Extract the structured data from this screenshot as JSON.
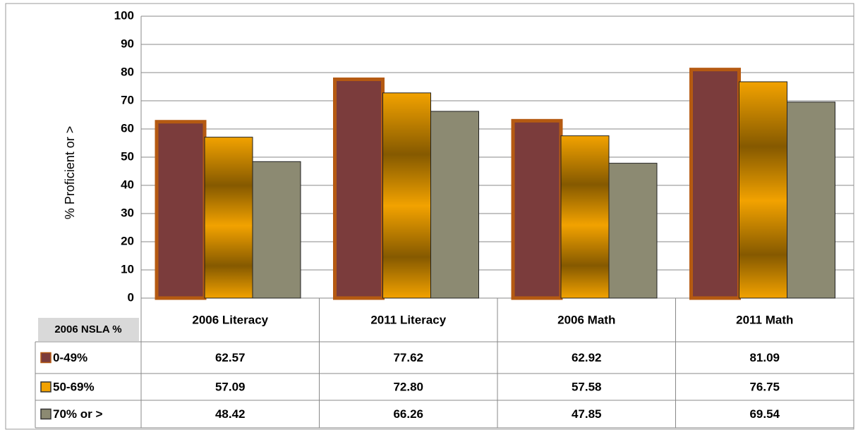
{
  "chart_data": {
    "type": "bar",
    "y_label": "% Proficient or >",
    "table_header": "2006 NSLA %",
    "categories": [
      "2006 Literacy",
      "2011 Literacy",
      "2006 Math",
      "2011 Math"
    ],
    "series": [
      {
        "name": "0-49%",
        "color": "#7b3c3c",
        "border": "#b55a12",
        "values": [
          62.57,
          77.62,
          62.92,
          81.09
        ],
        "value_labels": [
          "62.57",
          "77.62",
          "62.92",
          "81.09"
        ]
      },
      {
        "name": "50-69%",
        "color": "#f2a200",
        "values": [
          57.09,
          72.8,
          57.58,
          76.75
        ],
        "value_labels": [
          "57.09",
          "72.80",
          "57.58",
          "76.75"
        ]
      },
      {
        "name": "70% or >",
        "color": "#8c8a72",
        "values": [
          48.42,
          66.26,
          47.85,
          69.54
        ],
        "value_labels": [
          "48.42",
          "66.26",
          "47.85",
          "69.54"
        ]
      }
    ],
    "ylim": [
      0,
      100
    ],
    "yticks": [
      0,
      10,
      20,
      30,
      40,
      50,
      60,
      70,
      80,
      90,
      100
    ],
    "grid": true
  }
}
